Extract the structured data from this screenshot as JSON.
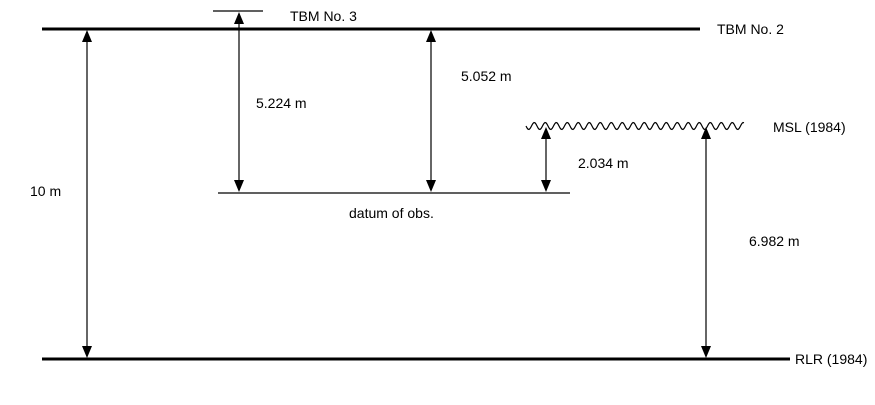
{
  "labels": {
    "tbm3": "TBM No. 3",
    "tbm2": "TBM No. 2",
    "msl": "MSL (1984)",
    "rlr": "RLR (1984)",
    "datum": "datum of obs."
  },
  "measurements": {
    "total": "10 m",
    "tbm3_to_datum": "5.224 m",
    "tbm2_to_datum": "5.052 m",
    "msl_to_datum": "2.034 m",
    "msl_to_rlr": "6.982 m"
  },
  "colors": {
    "line": "#000000",
    "background": "#ffffff"
  }
}
